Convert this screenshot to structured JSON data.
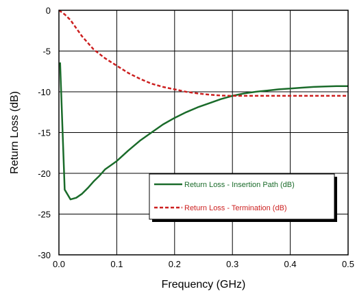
{
  "chart_data": {
    "type": "line",
    "title": "",
    "xlabel": "Frequency (GHz)",
    "ylabel": "Return Loss (dB)",
    "xlim": [
      0,
      0.5
    ],
    "ylim": [
      -30,
      0
    ],
    "x_ticks": [
      0.0,
      0.1,
      0.2,
      0.3,
      0.4,
      0.5
    ],
    "x_tick_labels": [
      "0.0",
      "0.1",
      "0.2",
      "0.3",
      "0.4",
      "0.5"
    ],
    "y_ticks": [
      0,
      -5,
      -10,
      -15,
      -20,
      -25,
      -30
    ],
    "y_tick_labels": [
      "0",
      "-5",
      "-10",
      "-15",
      "-20",
      "-25",
      "-30"
    ],
    "grid": true,
    "legend_position": "bottom-right",
    "series": [
      {
        "name": "Return Loss - Insertion Path (dB)",
        "color": "#1a6b2a",
        "line_style": "solid",
        "x": [
          0.002,
          0.01,
          0.02,
          0.03,
          0.04,
          0.05,
          0.06,
          0.07,
          0.08,
          0.09,
          0.1,
          0.12,
          0.14,
          0.16,
          0.18,
          0.2,
          0.22,
          0.24,
          0.26,
          0.28,
          0.3,
          0.32,
          0.34,
          0.36,
          0.38,
          0.4,
          0.42,
          0.44,
          0.46,
          0.48,
          0.5
        ],
        "y": [
          -6.4,
          -22.0,
          -23.2,
          -23.0,
          -22.5,
          -21.8,
          -21.0,
          -20.3,
          -19.5,
          -19.0,
          -18.5,
          -17.2,
          -16.0,
          -15.0,
          -14.0,
          -13.2,
          -12.5,
          -11.9,
          -11.4,
          -10.9,
          -10.5,
          -10.2,
          -10.0,
          -9.85,
          -9.7,
          -9.6,
          -9.5,
          -9.4,
          -9.35,
          -9.3,
          -9.3
        ]
      },
      {
        "name": "Return Loss - Termination (dB)",
        "color": "#cc1f1f",
        "line_style": "dashed",
        "x": [
          0.0,
          0.01,
          0.02,
          0.03,
          0.04,
          0.05,
          0.06,
          0.08,
          0.1,
          0.12,
          0.14,
          0.16,
          0.18,
          0.2,
          0.22,
          0.24,
          0.26,
          0.28,
          0.3,
          0.32,
          0.34,
          0.36,
          0.4,
          0.45,
          0.5
        ],
        "y": [
          0.0,
          -0.5,
          -1.2,
          -2.2,
          -3.2,
          -4.0,
          -4.8,
          -5.9,
          -6.8,
          -7.7,
          -8.4,
          -9.0,
          -9.4,
          -9.7,
          -10.0,
          -10.2,
          -10.35,
          -10.45,
          -10.5,
          -10.5,
          -10.5,
          -10.5,
          -10.5,
          -10.5,
          -10.5
        ]
      }
    ]
  }
}
